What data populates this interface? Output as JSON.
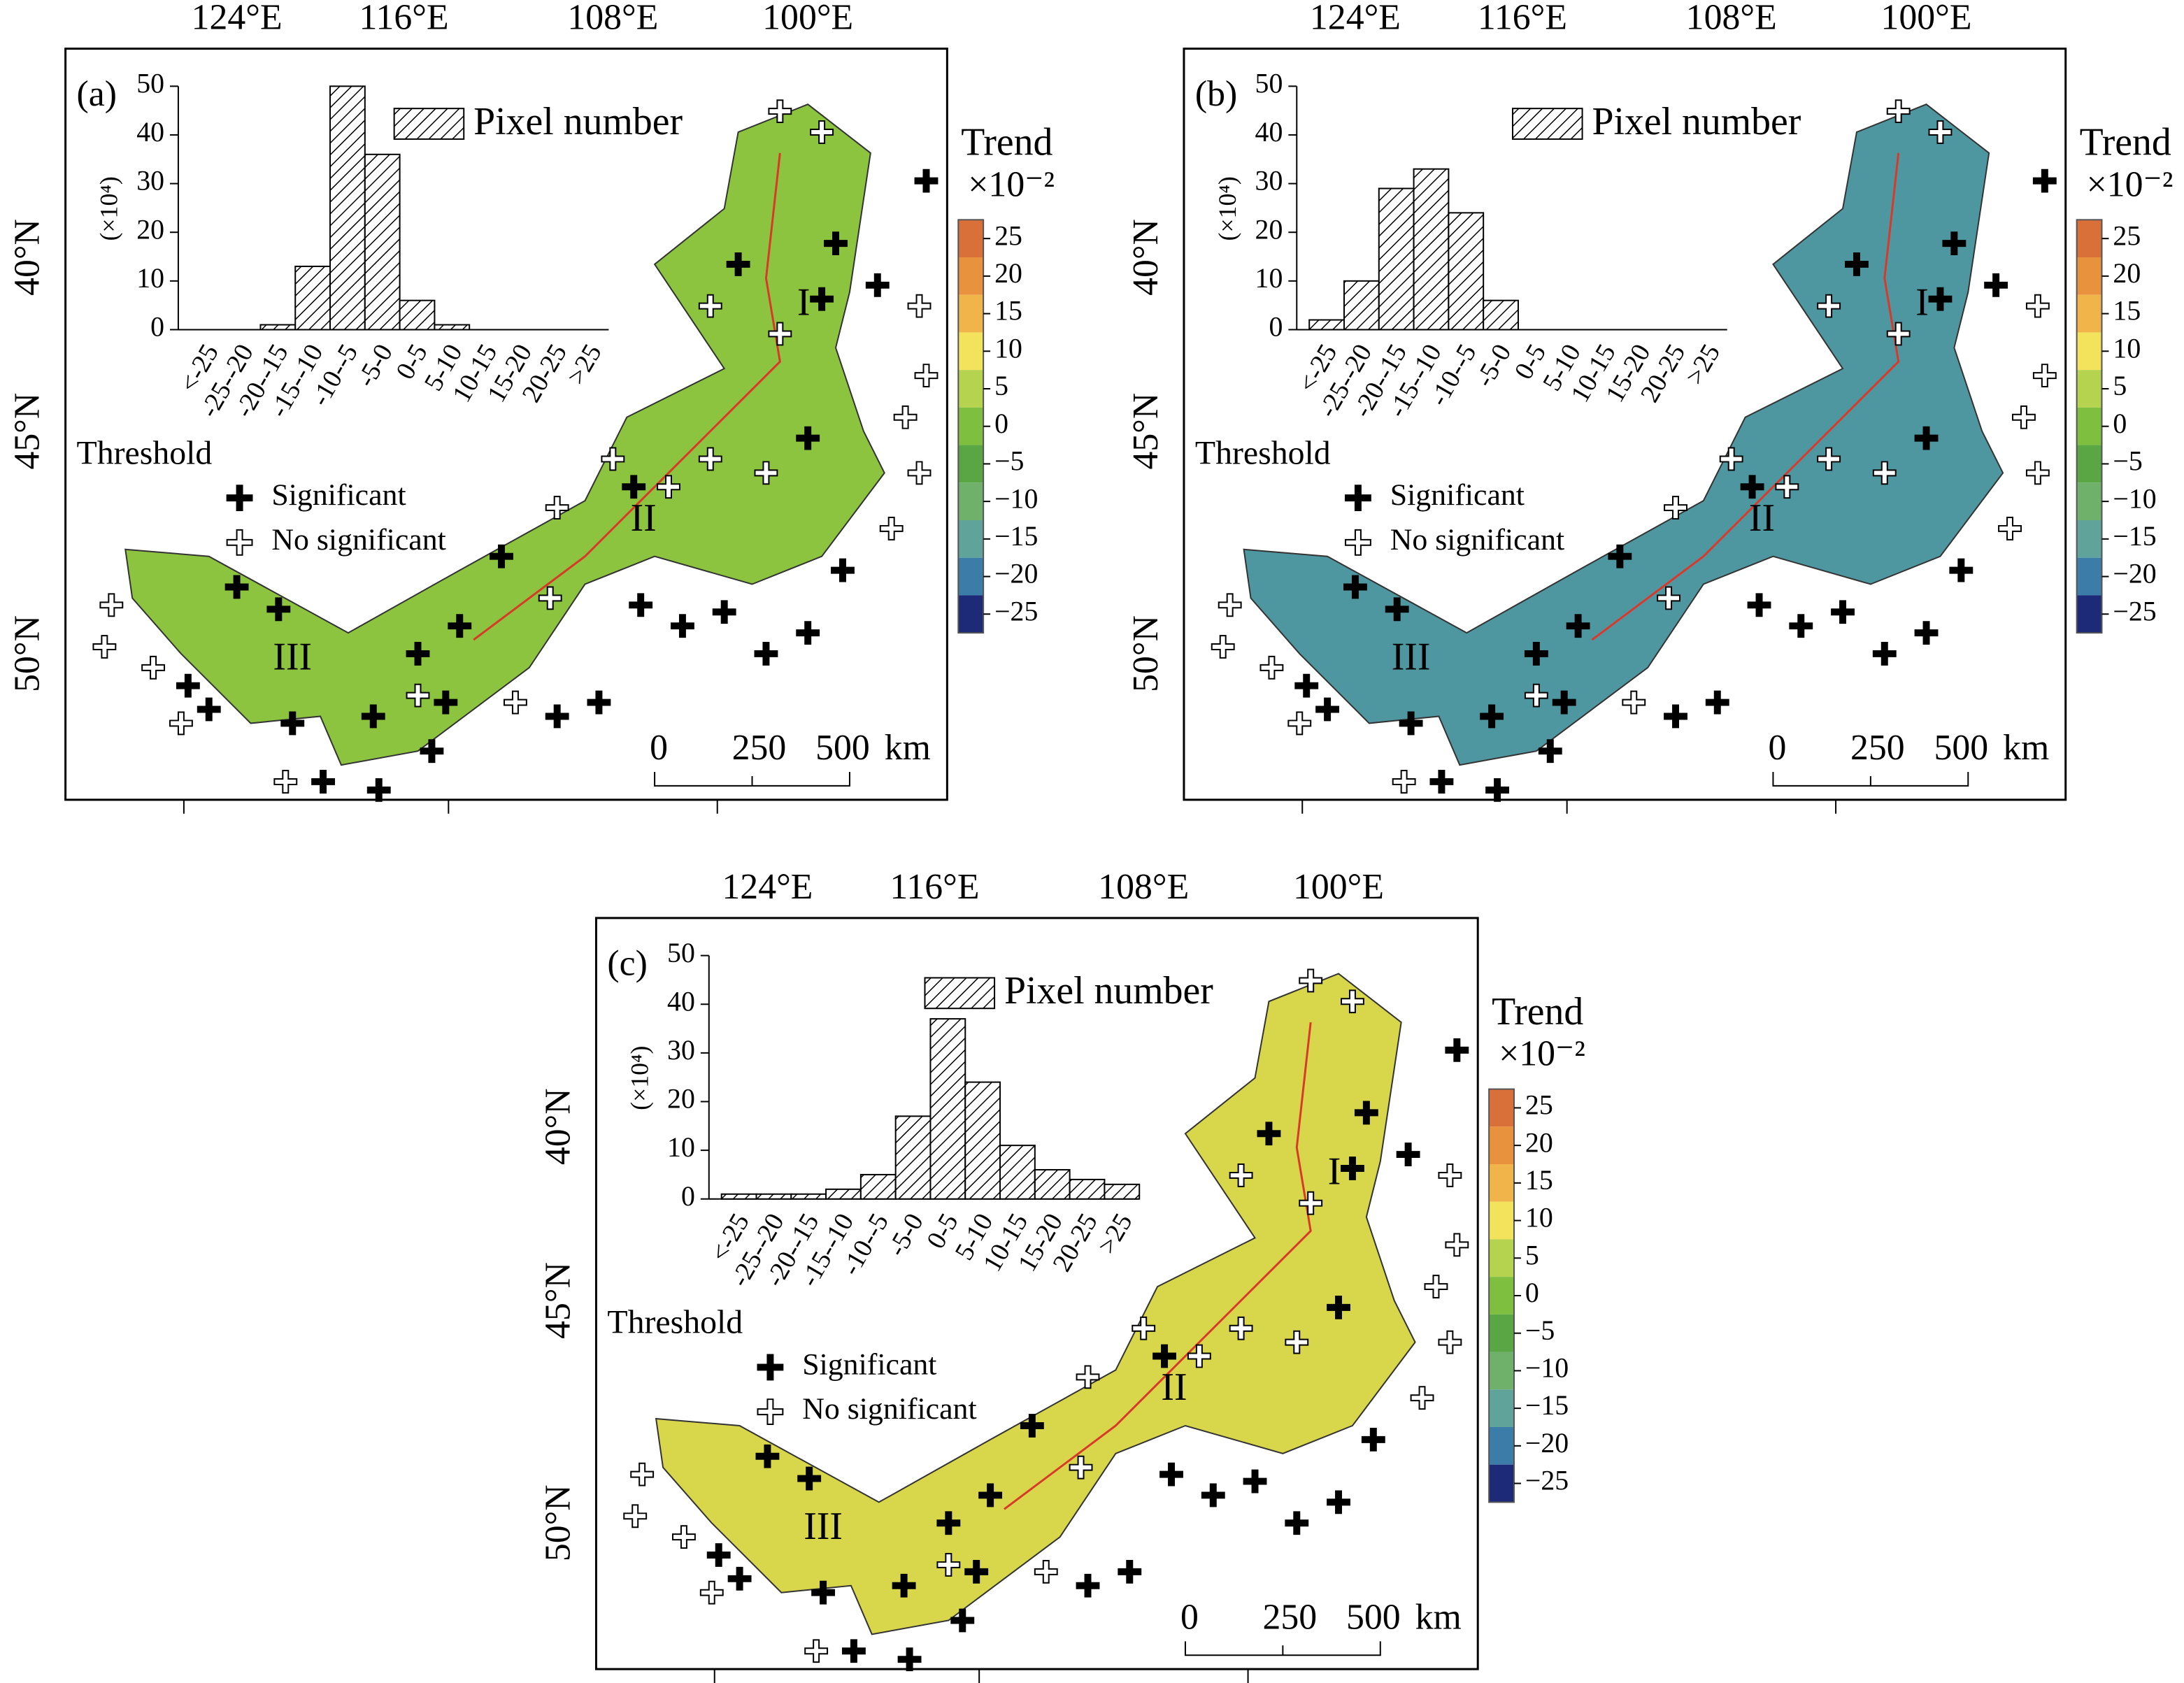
{
  "panels": [
    {
      "label": "(a)",
      "map_color": "#8cc43f",
      "lon_labels": [
        "124°E",
        "116°E",
        "108°E",
        "100°E"
      ],
      "lat_labels": [
        "40°N",
        "45°N",
        "50°N"
      ],
      "histogram": {
        "type": "bar",
        "legend": "Pixel number",
        "y_label": "(×10⁴)",
        "categories": [
          "<-25",
          "-25--20",
          "-20--15",
          "-15--10",
          "-10--5",
          "-5-0",
          "0-5",
          "5-10",
          "10-15",
          "15-20",
          "20-25",
          ">25"
        ],
        "values": [
          0,
          0,
          1,
          13,
          50,
          36,
          6,
          1,
          0,
          0,
          0,
          0
        ],
        "ylim": [
          0,
          50
        ],
        "yticks": [
          0,
          10,
          20,
          30,
          40,
          50
        ]
      },
      "trend_title": "Trend",
      "trend_unit": "×10⁻²",
      "threshold": "Threshold",
      "significant": "Significant",
      "not_significant": "No significant",
      "regions": [
        "I",
        "II",
        "III"
      ],
      "scale": [
        "0",
        "250",
        "500",
        "km"
      ]
    },
    {
      "label": "(b)",
      "map_color": "#4f97a0",
      "lon_labels": [
        "124°E",
        "116°E",
        "108°E",
        "100°E"
      ],
      "lat_labels": [
        "40°N",
        "45°N",
        "50°N"
      ],
      "histogram": {
        "type": "bar",
        "legend": "Pixel number",
        "y_label": "(×10⁴)",
        "categories": [
          "<-25",
          "-25--20",
          "-20--15",
          "-15--10",
          "-10--5",
          "-5-0",
          "0-5",
          "5-10",
          "10-15",
          "15-20",
          "20-25",
          ">25"
        ],
        "values": [
          2,
          10,
          29,
          33,
          24,
          6,
          0,
          0,
          0,
          0,
          0,
          0
        ],
        "ylim": [
          0,
          50
        ],
        "yticks": [
          0,
          10,
          20,
          30,
          40,
          50
        ]
      },
      "trend_title": "Trend",
      "trend_unit": "×10⁻²",
      "threshold": "Threshold",
      "significant": "Significant",
      "not_significant": "No significant",
      "regions": [
        "I",
        "II",
        "III"
      ],
      "scale": [
        "0",
        "250",
        "500",
        "km"
      ]
    },
    {
      "label": "(c)",
      "map_color": "#d8d64a",
      "lon_labels": [
        "124°E",
        "116°E",
        "108°E",
        "100°E"
      ],
      "lat_labels": [
        "40°N",
        "45°N",
        "50°N"
      ],
      "histogram": {
        "type": "bar",
        "legend": "Pixel number",
        "y_label": "(×10⁴)",
        "categories": [
          "<-25",
          "-25--20",
          "-20--15",
          "-15--10",
          "-10--5",
          "-5-0",
          "0-5",
          "5-10",
          "10-15",
          "15-20",
          "20-25",
          ">25"
        ],
        "values": [
          1,
          1,
          1,
          2,
          5,
          17,
          37,
          24,
          11,
          6,
          4,
          3
        ],
        "ylim": [
          0,
          50
        ],
        "yticks": [
          0,
          10,
          20,
          30,
          40,
          50
        ]
      },
      "trend_title": "Trend",
      "trend_unit": "×10⁻²",
      "threshold": "Threshold",
      "significant": "Significant",
      "not_significant": "No significant",
      "regions": [
        "I",
        "II",
        "III"
      ],
      "scale": [
        "0",
        "250",
        "500",
        "km"
      ]
    }
  ],
  "colorbar": {
    "ticks": [
      25,
      20,
      15,
      10,
      5,
      0,
      {
        "value": -5,
        "label": "−5"
      },
      {
        "value": -10,
        "label": "−10"
      },
      {
        "value": -15,
        "label": "−15"
      },
      {
        "value": -20,
        "label": "−20"
      },
      {
        "value": -25,
        "label": "−25"
      }
    ],
    "colors": [
      "#d9703a",
      "#e8923d",
      "#f0b44a",
      "#f2e25c",
      "#b5d34e",
      "#7fbf3f",
      "#5aa544",
      "#6fb06a",
      "#5fa39b",
      "#3b7ca8",
      "#1c2a78"
    ]
  }
}
